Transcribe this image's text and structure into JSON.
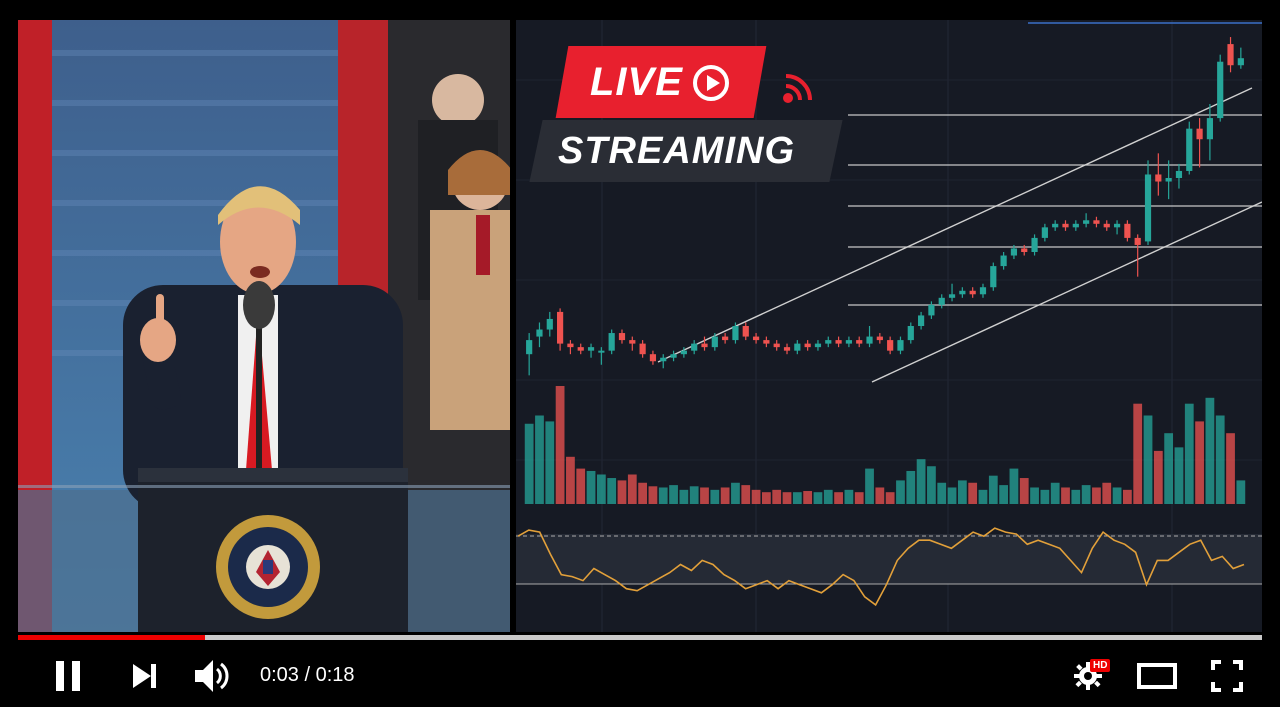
{
  "player": {
    "time_current": "0:03",
    "time_total": "0:18",
    "time_display": "0:03 / 0:18",
    "progress": 0.15,
    "hd_badge": "HD"
  },
  "overlay": {
    "live_label": "LIVE",
    "streaming_label": "STREAMING"
  },
  "seal": {
    "lettering": "SEAL OF THE PRESIDENT OF THE UNITED STATES"
  },
  "colors": {
    "up": "#26a69a",
    "down": "#ef5350",
    "live_red": "#e8202e",
    "progress_red": "#ee0000",
    "rsi_line": "#e2a03a"
  },
  "chart_data": {
    "type": "candlestick",
    "candles": [
      {
        "o": 43,
        "c": 47,
        "h": 49,
        "l": 37
      },
      {
        "o": 48,
        "c": 50,
        "h": 52,
        "l": 45
      },
      {
        "o": 50,
        "c": 53,
        "h": 55,
        "l": 48
      },
      {
        "o": 55,
        "c": 46,
        "h": 56,
        "l": 44
      },
      {
        "o": 46,
        "c": 45,
        "h": 47,
        "l": 43
      },
      {
        "o": 45,
        "c": 44,
        "h": 46,
        "l": 43
      },
      {
        "o": 44,
        "c": 45,
        "h": 46,
        "l": 42
      },
      {
        "o": 44,
        "c": 44,
        "h": 45,
        "l": 40
      },
      {
        "o": 44,
        "c": 49,
        "h": 50,
        "l": 43
      },
      {
        "o": 49,
        "c": 47,
        "h": 50,
        "l": 46
      },
      {
        "o": 47,
        "c": 46,
        "h": 48,
        "l": 44
      },
      {
        "o": 46,
        "c": 43,
        "h": 47,
        "l": 42
      },
      {
        "o": 43,
        "c": 41,
        "h": 44,
        "l": 40
      },
      {
        "o": 41,
        "c": 42,
        "h": 43,
        "l": 39
      },
      {
        "o": 42,
        "c": 43,
        "h": 44,
        "l": 41
      },
      {
        "o": 43,
        "c": 44,
        "h": 45,
        "l": 42
      },
      {
        "o": 44,
        "c": 46,
        "h": 47,
        "l": 43
      },
      {
        "o": 46,
        "c": 45,
        "h": 48,
        "l": 44
      },
      {
        "o": 45,
        "c": 48,
        "h": 49,
        "l": 44
      },
      {
        "o": 48,
        "c": 47,
        "h": 49,
        "l": 46
      },
      {
        "o": 47,
        "c": 51,
        "h": 52,
        "l": 46
      },
      {
        "o": 51,
        "c": 48,
        "h": 52,
        "l": 47
      },
      {
        "o": 48,
        "c": 47,
        "h": 49,
        "l": 46
      },
      {
        "o": 47,
        "c": 46,
        "h": 48,
        "l": 45
      },
      {
        "o": 46,
        "c": 45,
        "h": 47,
        "l": 44
      },
      {
        "o": 45,
        "c": 44,
        "h": 46,
        "l": 43
      },
      {
        "o": 44,
        "c": 46,
        "h": 47,
        "l": 43
      },
      {
        "o": 46,
        "c": 45,
        "h": 47,
        "l": 44
      },
      {
        "o": 45,
        "c": 46,
        "h": 47,
        "l": 44
      },
      {
        "o": 46,
        "c": 47,
        "h": 48,
        "l": 45
      },
      {
        "o": 47,
        "c": 46,
        "h": 48,
        "l": 45
      },
      {
        "o": 46,
        "c": 47,
        "h": 48,
        "l": 45
      },
      {
        "o": 47,
        "c": 46,
        "h": 48,
        "l": 45
      },
      {
        "o": 46,
        "c": 48,
        "h": 51,
        "l": 45
      },
      {
        "o": 48,
        "c": 47,
        "h": 49,
        "l": 46
      },
      {
        "o": 47,
        "c": 44,
        "h": 48,
        "l": 43
      },
      {
        "o": 44,
        "c": 47,
        "h": 48,
        "l": 43
      },
      {
        "o": 47,
        "c": 51,
        "h": 52,
        "l": 46
      },
      {
        "o": 51,
        "c": 54,
        "h": 55,
        "l": 50
      },
      {
        "o": 54,
        "c": 57,
        "h": 58,
        "l": 53
      },
      {
        "o": 57,
        "c": 59,
        "h": 60,
        "l": 56
      },
      {
        "o": 59,
        "c": 60,
        "h": 63,
        "l": 58
      },
      {
        "o": 60,
        "c": 61,
        "h": 62,
        "l": 59
      },
      {
        "o": 61,
        "c": 60,
        "h": 62,
        "l": 59
      },
      {
        "o": 60,
        "c": 62,
        "h": 63,
        "l": 59
      },
      {
        "o": 62,
        "c": 68,
        "h": 69,
        "l": 61
      },
      {
        "o": 68,
        "c": 71,
        "h": 72,
        "l": 67
      },
      {
        "o": 71,
        "c": 73,
        "h": 74,
        "l": 70
      },
      {
        "o": 73,
        "c": 72,
        "h": 74,
        "l": 71
      },
      {
        "o": 72,
        "c": 76,
        "h": 77,
        "l": 71
      },
      {
        "o": 76,
        "c": 79,
        "h": 80,
        "l": 75
      },
      {
        "o": 79,
        "c": 80,
        "h": 81,
        "l": 78
      },
      {
        "o": 80,
        "c": 79,
        "h": 81,
        "l": 78
      },
      {
        "o": 79,
        "c": 80,
        "h": 81,
        "l": 78
      },
      {
        "o": 80,
        "c": 81,
        "h": 83,
        "l": 79
      },
      {
        "o": 81,
        "c": 80,
        "h": 82,
        "l": 79
      },
      {
        "o": 80,
        "c": 79,
        "h": 81,
        "l": 78
      },
      {
        "o": 79,
        "c": 80,
        "h": 81,
        "l": 77
      },
      {
        "o": 80,
        "c": 76,
        "h": 81,
        "l": 75
      },
      {
        "o": 76,
        "c": 74,
        "h": 77,
        "l": 65
      },
      {
        "o": 75,
        "c": 94,
        "h": 98,
        "l": 74
      },
      {
        "o": 94,
        "c": 92,
        "h": 100,
        "l": 88
      },
      {
        "o": 92,
        "c": 93,
        "h": 98,
        "l": 87
      },
      {
        "o": 93,
        "c": 95,
        "h": 97,
        "l": 90
      },
      {
        "o": 95,
        "c": 107,
        "h": 109,
        "l": 94
      },
      {
        "o": 107,
        "c": 104,
        "h": 110,
        "l": 96
      },
      {
        "o": 104,
        "c": 110,
        "h": 114,
        "l": 98
      },
      {
        "o": 110,
        "c": 126,
        "h": 128,
        "l": 109
      },
      {
        "o": 131,
        "c": 125,
        "h": 133,
        "l": 123
      },
      {
        "o": 125,
        "c": 127,
        "h": 130,
        "l": 124
      }
    ],
    "volume": [
      68,
      75,
      70,
      100,
      40,
      30,
      28,
      25,
      22,
      20,
      25,
      18,
      15,
      14,
      16,
      12,
      15,
      14,
      12,
      14,
      18,
      16,
      12,
      10,
      12,
      10,
      10,
      11,
      10,
      12,
      10,
      12,
      10,
      30,
      14,
      10,
      20,
      28,
      38,
      32,
      18,
      14,
      20,
      18,
      12,
      24,
      16,
      30,
      22,
      14,
      12,
      18,
      14,
      12,
      16,
      14,
      18,
      14,
      12,
      85,
      75,
      45,
      60,
      48,
      85,
      70,
      90,
      75,
      60,
      20
    ],
    "rsi": [
      64,
      67,
      66,
      55,
      45,
      44,
      42,
      48,
      45,
      42,
      38,
      37,
      40,
      43,
      46,
      50,
      47,
      52,
      50,
      45,
      42,
      38,
      40,
      42,
      38,
      42,
      40,
      38,
      36,
      40,
      45,
      42,
      34,
      30,
      40,
      52,
      58,
      62,
      62,
      60,
      58,
      62,
      66,
      64,
      68,
      66,
      65,
      60,
      62,
      60,
      58,
      52,
      46,
      58,
      66,
      62,
      60,
      56,
      40,
      52,
      52,
      56,
      60,
      62,
      52,
      54,
      48,
      50
    ]
  }
}
